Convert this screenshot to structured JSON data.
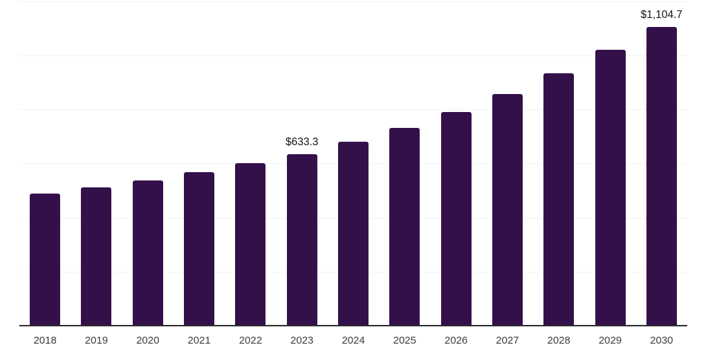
{
  "chart_data": {
    "type": "bar",
    "categories": [
      "2018",
      "2019",
      "2020",
      "2021",
      "2022",
      "2023",
      "2024",
      "2025",
      "2026",
      "2027",
      "2028",
      "2029",
      "2030"
    ],
    "values": [
      489,
      512,
      537,
      567.5,
      600,
      633.3,
      681,
      732,
      790,
      857,
      932,
      1019,
      1104.7
    ],
    "value_labels": [
      "",
      "",
      "",
      "",
      "",
      "$633.3",
      "",
      "",
      "",
      "",
      "",
      "",
      "$1,104.7"
    ],
    "title": "",
    "xlabel": "",
    "ylabel": "",
    "ylim": [
      0,
      1200
    ],
    "gridline_step": 200,
    "grid": "horizontal",
    "legend": "none",
    "colors": {
      "bar": "#33104A",
      "gridline": "#f2f2f2",
      "axis_line": "#2b2b2b",
      "tick_text": "#3d3d3d",
      "value_label_text": "#121212",
      "background": "#ffffff"
    }
  }
}
